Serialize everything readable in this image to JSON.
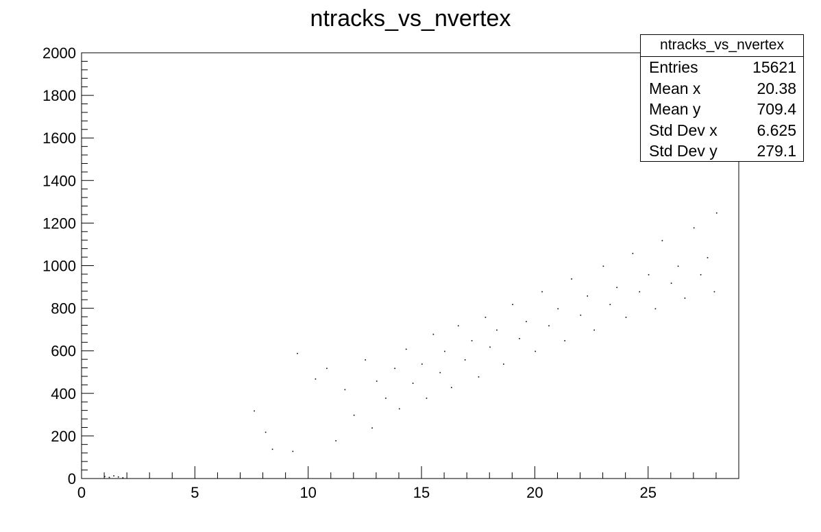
{
  "chart_data": {
    "type": "scatter",
    "title": "ntracks_vs_nvertex",
    "xlabel": "",
    "ylabel": "",
    "xlim": [
      0,
      29
    ],
    "ylim": [
      0,
      2000
    ],
    "x_ticks": [
      "0",
      "5",
      "10",
      "15",
      "20",
      "25"
    ],
    "y_ticks": [
      "0",
      "200",
      "400",
      "600",
      "800",
      "1000",
      "1200",
      "1400",
      "1600",
      "1800",
      "2000"
    ],
    "grid": false,
    "point_color": "#000000",
    "series": [
      {
        "values": [
          [
            1.0,
            12
          ],
          [
            1.2,
            8
          ],
          [
            1.4,
            15
          ],
          [
            1.6,
            10
          ],
          [
            1.8,
            6
          ],
          [
            7.6,
            320
          ],
          [
            8.1,
            220
          ],
          [
            8.4,
            140
          ],
          [
            9.3,
            130
          ],
          [
            9.5,
            590
          ],
          [
            10.3,
            470
          ],
          [
            10.8,
            520
          ],
          [
            11.2,
            180
          ],
          [
            11.6,
            420
          ],
          [
            12.0,
            300
          ],
          [
            12.5,
            560
          ],
          [
            12.8,
            240
          ],
          [
            13.0,
            460
          ],
          [
            13.4,
            380
          ],
          [
            13.8,
            520
          ],
          [
            14.0,
            330
          ],
          [
            14.3,
            610
          ],
          [
            14.6,
            450
          ],
          [
            15.0,
            540
          ],
          [
            15.2,
            380
          ],
          [
            15.5,
            680
          ],
          [
            15.8,
            500
          ],
          [
            16.0,
            600
          ],
          [
            16.3,
            430
          ],
          [
            16.6,
            720
          ],
          [
            16.9,
            560
          ],
          [
            17.2,
            650
          ],
          [
            17.5,
            480
          ],
          [
            17.8,
            760
          ],
          [
            18.0,
            620
          ],
          [
            18.3,
            700
          ],
          [
            18.6,
            540
          ],
          [
            19.0,
            820
          ],
          [
            19.3,
            660
          ],
          [
            19.6,
            740
          ],
          [
            20.0,
            600
          ],
          [
            20.3,
            880
          ],
          [
            20.6,
            720
          ],
          [
            21.0,
            800
          ],
          [
            21.3,
            650
          ],
          [
            21.6,
            940
          ],
          [
            22.0,
            770
          ],
          [
            22.3,
            860
          ],
          [
            22.6,
            700
          ],
          [
            23.0,
            1000
          ],
          [
            23.3,
            820
          ],
          [
            23.6,
            900
          ],
          [
            24.0,
            760
          ],
          [
            24.3,
            1060
          ],
          [
            24.6,
            880
          ],
          [
            25.0,
            960
          ],
          [
            25.3,
            800
          ],
          [
            25.6,
            1120
          ],
          [
            26.0,
            920
          ],
          [
            26.3,
            1000
          ],
          [
            26.6,
            850
          ],
          [
            27.0,
            1180
          ],
          [
            27.3,
            960
          ],
          [
            27.6,
            1040
          ],
          [
            27.9,
            880
          ],
          [
            28.0,
            1250
          ]
        ]
      }
    ],
    "stats_box": {
      "title": "ntracks_vs_nvertex",
      "rows": [
        {
          "label": "Entries",
          "value": "15621"
        },
        {
          "label": "Mean x",
          "value": "20.38"
        },
        {
          "label": "Mean y",
          "value": "709.4"
        },
        {
          "label": "Std Dev x",
          "value": "6.625"
        },
        {
          "label": "Std Dev y",
          "value": "279.1"
        }
      ]
    }
  }
}
